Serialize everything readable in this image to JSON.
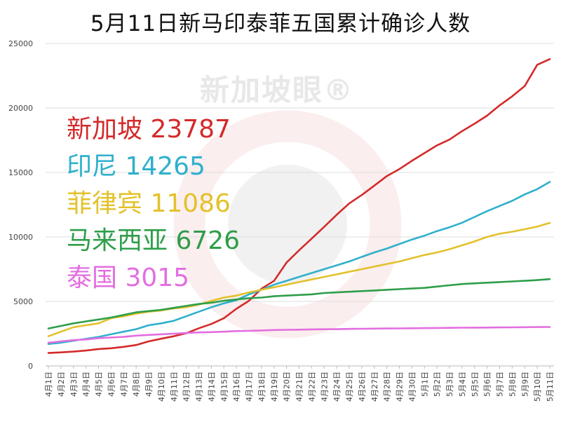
{
  "chart_data": {
    "type": "line",
    "title": "5月11日新马印泰菲五国累计确诊人数",
    "xlabel": "",
    "ylabel": "",
    "ylim": [
      0,
      25000
    ],
    "yticks": [
      0,
      5000,
      10000,
      15000,
      20000,
      25000
    ],
    "grid": true,
    "legend_position": "upper-left",
    "watermark": "新加坡眼®",
    "x": [
      "4月1日",
      "4月2日",
      "4月3日",
      "4月4日",
      "4月5日",
      "4月6日",
      "4月7日",
      "4月8日",
      "4月9日",
      "4月10日",
      "4月11日",
      "4月12日",
      "4月13日",
      "4月14日",
      "4月15日",
      "4月16日",
      "4月17日",
      "4月18日",
      "4月19日",
      "4月20日",
      "4月21日",
      "4月22日",
      "4月23日",
      "4月24日",
      "4月25日",
      "4月26日",
      "4月27日",
      "4月28日",
      "4月29日",
      "4月30日",
      "5月1日",
      "5月2日",
      "5月3日",
      "5月4日",
      "5月5日",
      "5月6日",
      "5月7日",
      "5月8日",
      "5月9日",
      "5月10日",
      "5月11日"
    ],
    "series": [
      {
        "name": "新加坡",
        "label": "新加坡 23787",
        "color": "#d42a2a",
        "values": [
          1000,
          1050,
          1110,
          1190,
          1310,
          1370,
          1480,
          1620,
          1900,
          2110,
          2300,
          2530,
          2920,
          3250,
          3700,
          4430,
          5050,
          5990,
          6590,
          8010,
          8960,
          9870,
          10780,
          11720,
          12600,
          13250,
          13980,
          14720,
          15260,
          15900,
          16500,
          17100,
          17550,
          18200,
          18780,
          19400,
          20200,
          20900,
          21700,
          23350,
          23787
        ]
      },
      {
        "name": "印尼",
        "label": "印尼 14265",
        "color": "#2fb0cc",
        "values": [
          1700,
          1800,
          1950,
          2100,
          2250,
          2450,
          2650,
          2850,
          3150,
          3300,
          3500,
          3850,
          4200,
          4550,
          4850,
          5100,
          5550,
          5900,
          6300,
          6600,
          6900,
          7200,
          7500,
          7800,
          8100,
          8450,
          8800,
          9100,
          9450,
          9800,
          10100,
          10450,
          10750,
          11100,
          11550,
          12000,
          12400,
          12800,
          13300,
          13700,
          14265
        ]
      },
      {
        "name": "菲律宾",
        "label": "菲律宾 11086",
        "color": "#e3c12a",
        "values": [
          2300,
          2650,
          3000,
          3150,
          3300,
          3700,
          3850,
          4050,
          4200,
          4300,
          4450,
          4550,
          4750,
          5050,
          5300,
          5450,
          5700,
          5900,
          6100,
          6300,
          6500,
          6700,
          6900,
          7100,
          7300,
          7500,
          7700,
          7900,
          8100,
          8350,
          8600,
          8800,
          9050,
          9350,
          9650,
          10000,
          10250,
          10400,
          10600,
          10800,
          11086
        ]
      },
      {
        "name": "马来西亚",
        "label": "马来西亚 6726",
        "color": "#2e9e4a",
        "values": [
          2900,
          3100,
          3300,
          3450,
          3600,
          3750,
          3950,
          4150,
          4250,
          4350,
          4500,
          4650,
          4800,
          4900,
          5050,
          5150,
          5250,
          5300,
          5400,
          5450,
          5500,
          5550,
          5650,
          5700,
          5750,
          5800,
          5850,
          5900,
          5950,
          6000,
          6050,
          6150,
          6250,
          6350,
          6400,
          6450,
          6500,
          6550,
          6600,
          6650,
          6726
        ]
      },
      {
        "name": "泰国",
        "label": "泰国 3015",
        "color": "#e36ee0",
        "values": [
          1800,
          1900,
          2000,
          2050,
          2150,
          2200,
          2250,
          2350,
          2400,
          2450,
          2500,
          2550,
          2600,
          2620,
          2650,
          2700,
          2720,
          2750,
          2780,
          2800,
          2810,
          2830,
          2840,
          2850,
          2870,
          2880,
          2890,
          2900,
          2910,
          2920,
          2930,
          2940,
          2950,
          2960,
          2970,
          2975,
          2985,
          2990,
          3000,
          3010,
          3015
        ]
      }
    ]
  }
}
